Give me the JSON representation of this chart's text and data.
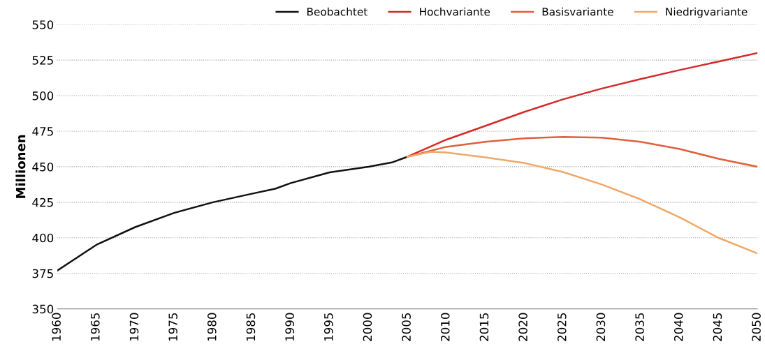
{
  "chart_data": {
    "type": "line",
    "ylabel": "Millionen",
    "xlim": [
      1960,
      2050
    ],
    "ylim": [
      350,
      550
    ],
    "xticks": [
      1960,
      1965,
      1970,
      1975,
      1980,
      1985,
      1990,
      1995,
      2000,
      2005,
      2010,
      2015,
      2020,
      2025,
      2030,
      2035,
      2040,
      2045,
      2050
    ],
    "yticks": [
      350,
      375,
      400,
      425,
      450,
      475,
      500,
      525,
      550
    ],
    "grid": "y",
    "legend": "top right",
    "marker": "none",
    "line_style": "solid",
    "series": [
      {
        "name": "Beobachtet",
        "color": "#111111",
        "x": [
          1960,
          1965,
          1970,
          1975,
          1980,
          1985,
          1988,
          1990,
          1995,
          2000,
          2003,
          2005
        ],
        "values": [
          377,
          395,
          407.5,
          417.5,
          425,
          431,
          434.5,
          438.5,
          446,
          450,
          453,
          457
        ]
      },
      {
        "name": "Hochvariante",
        "color": "#d42a2a",
        "x": [
          2005,
          2010,
          2015,
          2020,
          2025,
          2030,
          2035,
          2040,
          2045,
          2050
        ],
        "values": [
          457,
          469,
          478.7,
          488.5,
          497.4,
          505,
          511.7,
          518,
          524,
          530
        ]
      },
      {
        "name": "Basisvariante",
        "color": "#e0603a",
        "x": [
          2005,
          2010,
          2015,
          2020,
          2025,
          2030,
          2035,
          2040,
          2045,
          2050
        ],
        "values": [
          457,
          464,
          467.5,
          470,
          471,
          470.5,
          467.5,
          462.5,
          455.6,
          450
        ]
      },
      {
        "name": "Niedrigvariante",
        "color": "#f0a868",
        "x": [
          2005,
          2008,
          2010,
          2015,
          2020,
          2025,
          2030,
          2035,
          2040,
          2045,
          2050
        ],
        "values": [
          457,
          460.5,
          460,
          456.6,
          452.7,
          446.3,
          437.5,
          427,
          414.4,
          400,
          389
        ]
      }
    ]
  }
}
